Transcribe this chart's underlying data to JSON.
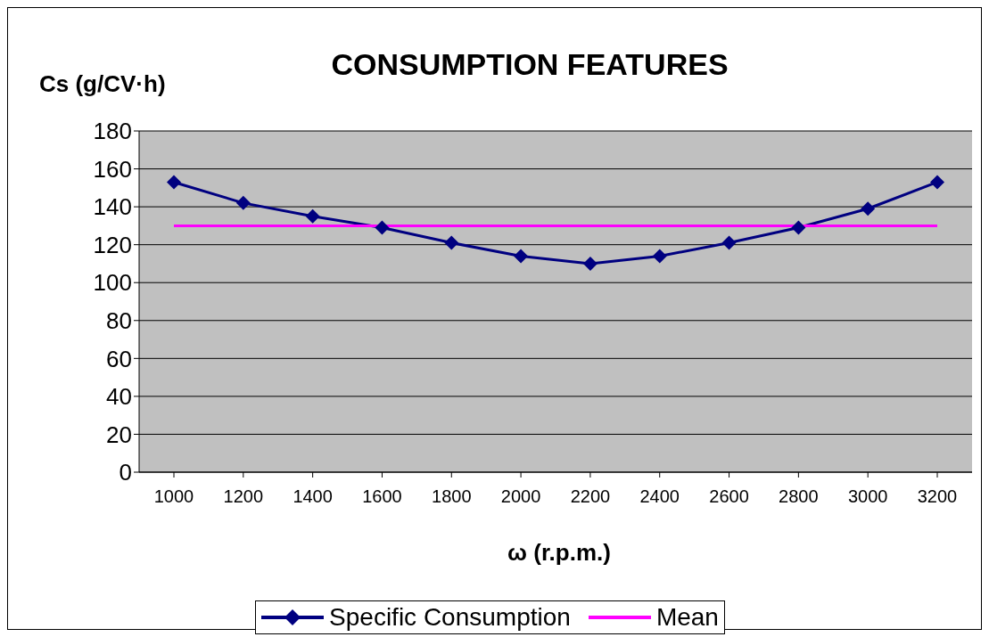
{
  "chart_data": {
    "type": "line",
    "title": "CONSUMPTION FEATURES",
    "xlabel": "ω (r.p.m.)",
    "ylabel": "Cs (g/CV·h)",
    "categories": [
      "1000",
      "1200",
      "1400",
      "1600",
      "1800",
      "2000",
      "2200",
      "2400",
      "2600",
      "2800",
      "3000",
      "3200"
    ],
    "series": [
      {
        "name": "Specific Consumption",
        "color": "#000080",
        "marker": "diamond",
        "values": [
          153,
          142,
          135,
          129,
          121,
          114,
          110,
          114,
          121,
          129,
          139,
          153
        ]
      },
      {
        "name": "Mean",
        "color": "#ff00ff",
        "marker": "none",
        "values": [
          130,
          130,
          130,
          130,
          130,
          130,
          130,
          130,
          130,
          130,
          130,
          130
        ]
      }
    ],
    "ylim": [
      0,
      180
    ],
    "yticks": [
      0,
      20,
      40,
      60,
      80,
      100,
      120,
      140,
      160,
      180
    ],
    "grid": "y",
    "legend": "bottom",
    "line_style": "solid"
  }
}
